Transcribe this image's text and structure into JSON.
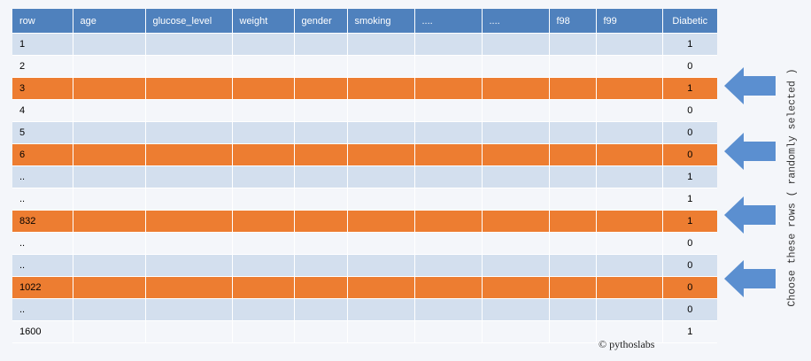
{
  "table": {
    "headers": [
      "row",
      "age",
      "glucose_level",
      "weight",
      "gender",
      "smoking",
      "....",
      "....",
      "f98",
      "f99",
      "Diabetic"
    ],
    "rows": [
      {
        "row": "1",
        "diabetic": "1",
        "selected": false
      },
      {
        "row": "2",
        "diabetic": "0",
        "selected": false
      },
      {
        "row": "3",
        "diabetic": "1",
        "selected": true
      },
      {
        "row": "4",
        "diabetic": "0",
        "selected": false
      },
      {
        "row": "5",
        "diabetic": "0",
        "selected": false
      },
      {
        "row": "6",
        "diabetic": "0",
        "selected": true
      },
      {
        "row": "..",
        "diabetic": "1",
        "selected": false
      },
      {
        "row": "..",
        "diabetic": "1",
        "selected": false
      },
      {
        "row": "832",
        "diabetic": "1",
        "selected": true
      },
      {
        "row": "..",
        "diabetic": "0",
        "selected": false
      },
      {
        "row": "..",
        "diabetic": "0",
        "selected": false
      },
      {
        "row": "1022",
        "diabetic": "0",
        "selected": true
      },
      {
        "row": "..",
        "diabetic": "0",
        "selected": false
      },
      {
        "row": "1600",
        "diabetic": "1",
        "selected": false
      }
    ]
  },
  "side_label": "Choose these rows ( randomly selected )",
  "copyright": "© pythoslabs",
  "colors": {
    "header": "#4f81bd",
    "row_alt": "#d3dfee",
    "row_plain": "#f4f6fa",
    "selected": "#ed7d31",
    "arrow": "#5b8fd0"
  }
}
